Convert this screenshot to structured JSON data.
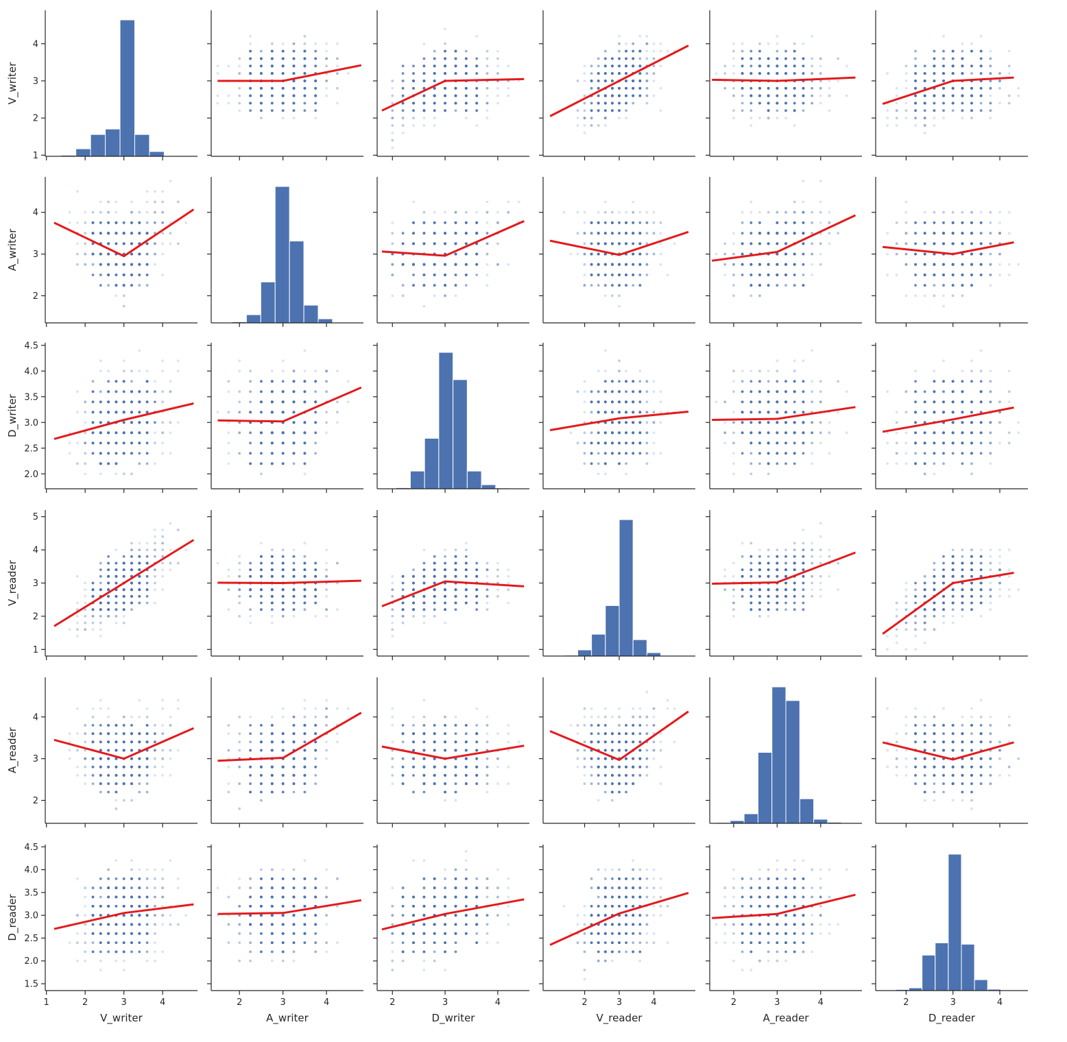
{
  "chart_data": {
    "type": "pairplot",
    "variables": [
      "V_writer",
      "A_writer",
      "D_writer",
      "V_reader",
      "A_reader",
      "D_reader"
    ],
    "diag_kind": "histogram",
    "offdiag_kind": "scatter with lowess fit line",
    "colors": {
      "points": "#4c72b0",
      "bars": "#4c72b0",
      "fit_line": "#e31a1c",
      "axes": "#262626"
    },
    "grid": false,
    "axes": {
      "V_writer": {
        "lim": [
          0.97,
          4.9
        ],
        "ticks": [
          1,
          2,
          3,
          4
        ],
        "tick_labels": [
          "1",
          "2",
          "3",
          "4"
        ]
      },
      "A_writer": {
        "lim": [
          1.35,
          4.85
        ],
        "ticks": [
          2,
          3,
          4
        ],
        "tick_labels": [
          "2",
          "3",
          "4"
        ]
      },
      "D_writer": {
        "lim": [
          1.71,
          4.6
        ],
        "ticks": [
          2,
          3,
          4
        ],
        "tick_labels": [
          "2",
          "3",
          "4"
        ]
      },
      "V_reader": {
        "lim": [
          0.8,
          5.2
        ],
        "ticks": [
          2,
          3,
          4
        ],
        "tick_labels": [
          "2",
          "3",
          "4"
        ]
      },
      "A_reader": {
        "lim": [
          1.45,
          4.95
        ],
        "ticks": [
          2,
          3,
          4
        ],
        "tick_labels": [
          "2",
          "3",
          "4"
        ]
      },
      "D_reader": {
        "lim": [
          1.35,
          4.6
        ],
        "ticks": [
          2,
          3,
          4
        ],
        "tick_labels": [
          "2",
          "3",
          "4"
        ]
      }
    },
    "row_axes": {
      "V_writer": {
        "lim": [
          0.97,
          4.9
        ],
        "ticks": [
          1,
          2,
          3,
          4
        ],
        "tick_labels": [
          "1",
          "2",
          "3",
          "4"
        ]
      },
      "A_writer": {
        "lim": [
          1.35,
          4.85
        ],
        "ticks": [
          2,
          3,
          4
        ],
        "tick_labels": [
          "2",
          "3",
          "4"
        ]
      },
      "D_writer": {
        "lim": [
          1.71,
          4.55
        ],
        "ticks": [
          2.0,
          2.5,
          3.0,
          3.5,
          4.0,
          4.5
        ],
        "tick_labels": [
          "2.0",
          "2.5",
          "3.0",
          "3.5",
          "4.0",
          "4.5"
        ]
      },
      "V_reader": {
        "lim": [
          0.8,
          5.2
        ],
        "ticks": [
          1,
          2,
          3,
          4,
          5
        ],
        "tick_labels": [
          "1",
          "2",
          "3",
          "4",
          "5"
        ]
      },
      "A_reader": {
        "lim": [
          1.45,
          4.95
        ],
        "ticks": [
          2,
          3,
          4
        ],
        "tick_labels": [
          "2",
          "3",
          "4"
        ]
      },
      "D_reader": {
        "lim": [
          1.35,
          4.55
        ],
        "ticks": [
          1.5,
          2.0,
          2.5,
          3.0,
          3.5,
          4.0,
          4.5
        ],
        "tick_labels": [
          "1.5",
          "2.0",
          "2.5",
          "3.0",
          "3.5",
          "4.0",
          "4.5"
        ]
      }
    },
    "histograms": {
      "V_writer": {
        "bin_edges": [
          1.0,
          1.38,
          1.76,
          2.14,
          2.52,
          2.9,
          3.28,
          3.66,
          4.04,
          4.42,
          4.8
        ],
        "relative_heights": [
          0.003,
          0.008,
          0.055,
          0.16,
          0.2,
          1.0,
          0.16,
          0.035,
          0.004,
          0.002
        ]
      },
      "A_writer": {
        "bin_edges": [
          1.5,
          1.83,
          2.16,
          2.49,
          2.82,
          3.15,
          3.48,
          3.81,
          4.14,
          4.47,
          4.8
        ],
        "relative_heights": [
          0.002,
          0.008,
          0.06,
          0.3,
          1.0,
          0.6,
          0.13,
          0.03,
          0.004,
          0.002
        ]
      },
      "D_writer": {
        "bin_edges": [
          1.8,
          2.07,
          2.34,
          2.61,
          2.88,
          3.15,
          3.42,
          3.69,
          3.96,
          4.23,
          4.5
        ],
        "relative_heights": [
          0.002,
          0.008,
          0.13,
          0.37,
          1.0,
          0.8,
          0.13,
          0.03,
          0.006,
          0.002
        ]
      },
      "V_reader": {
        "bin_edges": [
          1.0,
          1.4,
          1.8,
          2.2,
          2.6,
          3.0,
          3.4,
          3.8,
          4.2,
          4.6,
          5.0
        ],
        "relative_heights": [
          0.003,
          0.006,
          0.045,
          0.16,
          0.37,
          1.0,
          0.12,
          0.025,
          0.004,
          0.002
        ]
      },
      "A_reader": {
        "bin_edges": [
          1.6,
          1.92,
          2.24,
          2.56,
          2.88,
          3.2,
          3.52,
          3.84,
          4.16,
          4.48,
          4.8
        ],
        "relative_heights": [
          0.006,
          0.02,
          0.07,
          0.52,
          1.0,
          0.9,
          0.18,
          0.03,
          0.008,
          0.002
        ]
      },
      "D_reader": {
        "bin_edges": [
          1.5,
          1.78,
          2.06,
          2.34,
          2.62,
          2.9,
          3.18,
          3.46,
          3.74,
          4.02,
          4.3
        ],
        "relative_heights": [
          0.004,
          0.008,
          0.02,
          0.26,
          0.35,
          1.0,
          0.34,
          0.08,
          0.01,
          0.003
        ]
      }
    },
    "fit_lines": {
      "A_writer|V_writer": {
        "x": [
          1.5,
          3.0,
          4.8
        ],
        "y": [
          3.0,
          3.0,
          3.42
        ]
      },
      "D_writer|V_writer": {
        "x": [
          1.8,
          3.0,
          4.5
        ],
        "y": [
          2.2,
          3.0,
          3.05
        ]
      },
      "V_reader|V_writer": {
        "x": [
          1.0,
          3.0,
          5.0
        ],
        "y": [
          2.05,
          3.0,
          3.95
        ]
      },
      "A_reader|V_writer": {
        "x": [
          1.5,
          3.0,
          4.8
        ],
        "y": [
          3.03,
          3.0,
          3.09
        ]
      },
      "D_reader|V_writer": {
        "x": [
          1.5,
          3.0,
          4.3
        ],
        "y": [
          2.38,
          3.0,
          3.09
        ]
      },
      "V_writer|A_writer": {
        "x": [
          1.2,
          3.0,
          4.8
        ],
        "y": [
          3.75,
          2.95,
          4.07
        ]
      },
      "D_writer|A_writer": {
        "x": [
          1.8,
          3.0,
          4.5
        ],
        "y": [
          3.06,
          2.96,
          3.79
        ]
      },
      "V_reader|A_writer": {
        "x": [
          1.0,
          3.0,
          5.0
        ],
        "y": [
          3.32,
          2.98,
          3.53
        ]
      },
      "A_reader|A_writer": {
        "x": [
          1.5,
          3.0,
          4.8
        ],
        "y": [
          2.84,
          3.05,
          3.93
        ]
      },
      "D_reader|A_writer": {
        "x": [
          1.5,
          3.0,
          4.3
        ],
        "y": [
          3.17,
          3.0,
          3.28
        ]
      },
      "V_writer|D_writer": {
        "x": [
          1.2,
          3.0,
          4.8
        ],
        "y": [
          2.68,
          3.05,
          3.37
        ]
      },
      "A_writer|D_writer": {
        "x": [
          1.5,
          3.0,
          4.8
        ],
        "y": [
          3.04,
          3.02,
          3.68
        ]
      },
      "V_reader|D_writer": {
        "x": [
          1.0,
          3.0,
          5.0
        ],
        "y": [
          2.85,
          3.08,
          3.21
        ]
      },
      "A_reader|D_writer": {
        "x": [
          1.5,
          3.0,
          4.8
        ],
        "y": [
          3.05,
          3.07,
          3.3
        ]
      },
      "D_reader|D_writer": {
        "x": [
          1.5,
          3.0,
          4.3
        ],
        "y": [
          2.82,
          3.06,
          3.29
        ]
      },
      "V_writer|V_reader": {
        "x": [
          1.2,
          3.0,
          4.8
        ],
        "y": [
          1.7,
          3.0,
          4.3
        ]
      },
      "A_writer|V_reader": {
        "x": [
          1.5,
          3.0,
          4.8
        ],
        "y": [
          3.01,
          3.0,
          3.07
        ]
      },
      "D_writer|V_reader": {
        "x": [
          1.8,
          3.0,
          4.5
        ],
        "y": [
          2.3,
          3.05,
          2.9
        ]
      },
      "A_reader|V_reader": {
        "x": [
          1.5,
          3.0,
          4.8
        ],
        "y": [
          2.98,
          3.02,
          3.92
        ]
      },
      "D_reader|V_reader": {
        "x": [
          1.5,
          3.0,
          4.3
        ],
        "y": [
          1.47,
          3.0,
          3.31
        ]
      },
      "V_writer|A_reader": {
        "x": [
          1.2,
          3.0,
          4.8
        ],
        "y": [
          3.45,
          3.0,
          3.73
        ]
      },
      "A_writer|A_reader": {
        "x": [
          1.5,
          3.0,
          4.8
        ],
        "y": [
          2.95,
          3.02,
          4.1
        ]
      },
      "D_writer|A_reader": {
        "x": [
          1.8,
          3.0,
          4.5
        ],
        "y": [
          3.29,
          3.0,
          3.31
        ]
      },
      "V_reader|A_reader": {
        "x": [
          1.0,
          3.0,
          5.0
        ],
        "y": [
          3.66,
          2.97,
          4.13
        ]
      },
      "D_reader|A_reader": {
        "x": [
          1.5,
          3.0,
          4.3
        ],
        "y": [
          3.39,
          2.98,
          3.39
        ]
      },
      "V_writer|D_reader": {
        "x": [
          1.2,
          3.0,
          4.8
        ],
        "y": [
          2.7,
          3.05,
          3.24
        ]
      },
      "A_writer|D_reader": {
        "x": [
          1.5,
          3.0,
          4.8
        ],
        "y": [
          3.03,
          3.05,
          3.33
        ]
      },
      "D_writer|D_reader": {
        "x": [
          1.8,
          3.0,
          4.5
        ],
        "y": [
          2.69,
          3.03,
          3.35
        ]
      },
      "V_reader|D_reader": {
        "x": [
          1.0,
          3.0,
          5.0
        ],
        "y": [
          2.35,
          3.04,
          3.49
        ]
      },
      "A_reader|D_reader": {
        "x": [
          1.5,
          3.0,
          4.8
        ],
        "y": [
          2.94,
          3.03,
          3.45
        ]
      }
    },
    "title": "",
    "legend": "none"
  }
}
